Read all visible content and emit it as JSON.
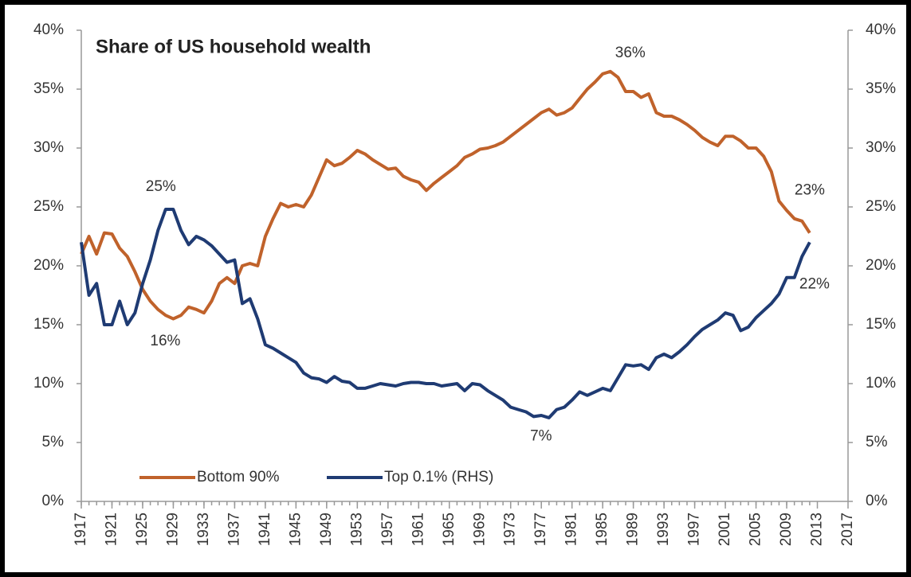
{
  "chart_data": {
    "type": "line",
    "title": "Share of US household wealth",
    "x": [
      1917,
      1918,
      1919,
      1920,
      1921,
      1922,
      1923,
      1924,
      1925,
      1926,
      1927,
      1928,
      1929,
      1930,
      1931,
      1932,
      1933,
      1934,
      1935,
      1936,
      1937,
      1938,
      1939,
      1940,
      1941,
      1942,
      1943,
      1944,
      1945,
      1946,
      1947,
      1948,
      1949,
      1950,
      1951,
      1952,
      1953,
      1954,
      1955,
      1956,
      1957,
      1958,
      1959,
      1960,
      1961,
      1962,
      1963,
      1964,
      1965,
      1966,
      1967,
      1968,
      1969,
      1970,
      1971,
      1972,
      1973,
      1974,
      1975,
      1976,
      1977,
      1978,
      1979,
      1980,
      1981,
      1982,
      1983,
      1984,
      1985,
      1986,
      1987,
      1988,
      1989,
      1990,
      1991,
      1992,
      1993,
      1994,
      1995,
      1996,
      1997,
      1998,
      1999,
      2000,
      2001,
      2002,
      2003,
      2004,
      2005,
      2006,
      2007,
      2008,
      2009,
      2010,
      2011,
      2012
    ],
    "series": [
      {
        "name": "Bottom 90%",
        "color": "#c0622b",
        "axis": "y",
        "values": [
          21,
          22.5,
          21,
          22.8,
          22.7,
          21.5,
          20.8,
          19.5,
          18,
          17,
          16.3,
          15.8,
          15.5,
          15.8,
          16.5,
          16.3,
          16,
          17,
          18.5,
          19,
          18.5,
          20,
          20.2,
          20,
          22.5,
          24,
          25.3,
          25,
          25.2,
          25,
          26,
          27.5,
          29,
          28.5,
          28.7,
          29.2,
          29.8,
          29.5,
          29,
          28.6,
          28.2,
          28.3,
          27.6,
          27.3,
          27.1,
          26.4,
          27,
          27.5,
          28,
          28.5,
          29.2,
          29.5,
          29.9,
          30,
          30.2,
          30.5,
          31,
          31.5,
          32,
          32.5,
          33,
          33.3,
          32.8,
          33,
          33.4,
          34.2,
          35,
          35.6,
          36.3,
          36.5,
          36,
          34.8,
          34.8,
          34.3,
          34.6,
          33,
          32.7,
          32.7,
          32.4,
          32,
          31.5,
          30.9,
          30.5,
          30.2,
          31,
          31,
          30.6,
          30,
          30,
          29.3,
          28,
          25.5,
          24.7,
          24,
          23.8,
          22.8
        ]
      },
      {
        "name": "Top 0.1% (RHS)",
        "color": "#1f3b73",
        "axis": "y2",
        "values": [
          22,
          17.5,
          18.5,
          15,
          15,
          17,
          15,
          16,
          18.5,
          20.5,
          23,
          24.8,
          24.8,
          23,
          21.8,
          22.5,
          22.2,
          21.7,
          21,
          20.3,
          20.5,
          16.8,
          17.2,
          15.5,
          13.3,
          13,
          12.6,
          12.2,
          11.8,
          10.9,
          10.5,
          10.4,
          10.1,
          10.6,
          10.2,
          10.1,
          9.6,
          9.6,
          9.8,
          10,
          9.9,
          9.8,
          10,
          10.1,
          10.1,
          10,
          10,
          9.8,
          9.9,
          10,
          9.4,
          10,
          9.9,
          9.4,
          9,
          8.6,
          8,
          7.8,
          7.6,
          7.2,
          7.3,
          7.1,
          7.8,
          8,
          8.6,
          9.3,
          9,
          9.3,
          9.6,
          9.4,
          10.5,
          11.6,
          11.5,
          11.6,
          11.2,
          12.2,
          12.5,
          12.2,
          12.7,
          13.3,
          14,
          14.6,
          15,
          15.4,
          16,
          15.8,
          14.5,
          14.8,
          15.6,
          16.2,
          16.8,
          17.6,
          19,
          19,
          20.8,
          22
        ]
      }
    ],
    "annotations": [
      {
        "text": "36%",
        "x": 1986,
        "y": 36,
        "series": 0
      },
      {
        "text": "25%",
        "x": 1928,
        "y": 25,
        "series": 1
      },
      {
        "text": "16%",
        "x": 1929,
        "y": 16,
        "series": 0
      },
      {
        "text": "7%",
        "x": 1978,
        "y": 7,
        "series": 1
      },
      {
        "text": "23%",
        "x": 2012,
        "y": 23,
        "series": 0
      },
      {
        "text": "22%",
        "x": 2012,
        "y": 22,
        "series": 1
      }
    ],
    "xlim": [
      1917,
      2017
    ],
    "xticks": [
      1917,
      1921,
      1925,
      1929,
      1933,
      1937,
      1941,
      1945,
      1949,
      1953,
      1957,
      1961,
      1965,
      1969,
      1973,
      1977,
      1981,
      1985,
      1989,
      1993,
      1997,
      2001,
      2005,
      2009,
      2013,
      2017
    ],
    "ylim": [
      0,
      40
    ],
    "yticks": [
      {
        "value": 0,
        "label": "0%"
      },
      {
        "value": 5,
        "label": "5%"
      },
      {
        "value": 10,
        "label": "10%"
      },
      {
        "value": 15,
        "label": "15%"
      },
      {
        "value": 20,
        "label": "20%"
      },
      {
        "value": 25,
        "label": "25%"
      },
      {
        "value": 30,
        "label": "30%"
      },
      {
        "value": 35,
        "label": "35%"
      },
      {
        "value": 40,
        "label": "40%"
      }
    ],
    "y2lim": [
      0,
      40
    ],
    "y2ticks": [
      {
        "value": 0,
        "label": "0%"
      },
      {
        "value": 5,
        "label": "5%"
      },
      {
        "value": 10,
        "label": "10%"
      },
      {
        "value": 15,
        "label": "15%"
      },
      {
        "value": 20,
        "label": "20%"
      },
      {
        "value": 25,
        "label": "25%"
      },
      {
        "value": 30,
        "label": "30%"
      },
      {
        "value": 35,
        "label": "35%"
      },
      {
        "value": 40,
        "label": "40%"
      }
    ],
    "grid": false,
    "legend": "lower left"
  }
}
